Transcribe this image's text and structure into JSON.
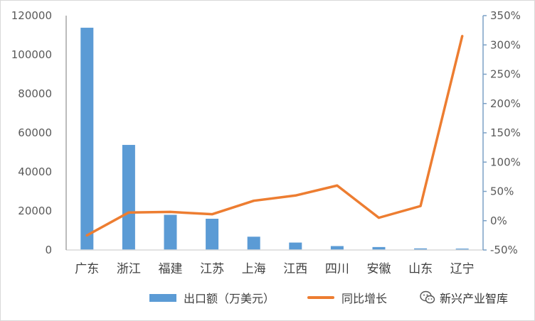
{
  "chart_data": {
    "type": "bar+line",
    "categories": [
      "广东",
      "浙江",
      "福建",
      "江苏",
      "上海",
      "江西",
      "四川",
      "安徽",
      "山东",
      "辽宁"
    ],
    "series": [
      {
        "name": "出口额（万美元）",
        "type": "bar",
        "axis": "left",
        "color": "#5b9bd5",
        "values": [
          113800,
          53800,
          18000,
          16000,
          6800,
          3800,
          2000,
          1500,
          800,
          700
        ]
      },
      {
        "name": "同比增长",
        "type": "line",
        "axis": "right",
        "color": "#ed7d31",
        "values": [
          -25,
          14,
          15,
          11,
          34,
          43,
          60,
          5,
          25,
          315
        ]
      }
    ],
    "y_left": {
      "min": 0,
      "max": 120000,
      "ticks": [
        "0",
        "20000",
        "40000",
        "60000",
        "80000",
        "100000",
        "120000"
      ]
    },
    "y_right": {
      "min": -50,
      "max": 350,
      "ticks": [
        "-50%",
        "0%",
        "50%",
        "100%",
        "150%",
        "200%",
        "250%",
        "300%",
        "350%"
      ]
    },
    "grid": false,
    "legend_position": "bottom"
  },
  "watermark": {
    "text": "新兴产业智库",
    "icon": "wechat-icon"
  }
}
